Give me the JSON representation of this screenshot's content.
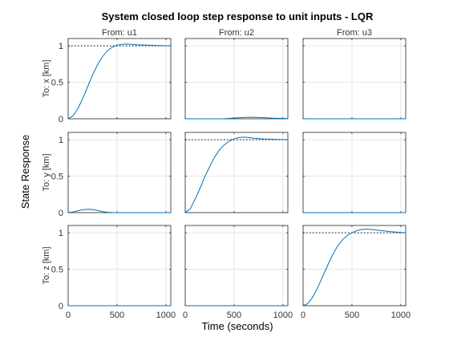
{
  "chart_data": {
    "type": "line",
    "title": "System closed loop step response to unit inputs - LQR",
    "xlabel": "Time (seconds)",
    "ylabel": "State Response",
    "xlim": [
      0,
      1050
    ],
    "ylim": [
      0,
      1.1
    ],
    "x_ticks": [
      0,
      500,
      1000
    ],
    "y_ticks": [
      0,
      0.5,
      1
    ],
    "x_tick_labels": [
      "0",
      "500",
      "1000"
    ],
    "y_tick_labels": [
      "0",
      "0.5",
      "1"
    ],
    "grid": true,
    "column_labels": [
      "From: u1",
      "From: u2",
      "From: u3"
    ],
    "row_labels": [
      "To: x [km]",
      "To: y [km]",
      "To: z [km]"
    ],
    "reference_value": 1,
    "colors": {
      "response": "#0072bd",
      "reference": "#000000",
      "grid": "#e6e6e6",
      "axes": "#262626"
    },
    "panels": [
      {
        "row": 0,
        "col": 0,
        "reference": true,
        "series": {
          "x": [
            0,
            50,
            100,
            150,
            200,
            250,
            300,
            350,
            400,
            450,
            500,
            550,
            600,
            650,
            700,
            800,
            900,
            1050
          ],
          "y": [
            0,
            0.04,
            0.14,
            0.28,
            0.44,
            0.6,
            0.74,
            0.85,
            0.93,
            0.98,
            1.01,
            1.02,
            1.025,
            1.02,
            1.015,
            1.01,
            1.005,
            1.0
          ]
        }
      },
      {
        "row": 0,
        "col": 1,
        "reference": false,
        "series": {
          "x": [
            0,
            200,
            400,
            500,
            600,
            700,
            800,
            900,
            1050
          ],
          "y": [
            0,
            0,
            0.002,
            0.01,
            0.018,
            0.02,
            0.015,
            0.008,
            0.003
          ]
        }
      },
      {
        "row": 0,
        "col": 2,
        "reference": false,
        "series": {
          "x": [
            0,
            1050
          ],
          "y": [
            0,
            0
          ]
        }
      },
      {
        "row": 1,
        "col": 0,
        "reference": false,
        "series": {
          "x": [
            0,
            50,
            100,
            150,
            200,
            250,
            300,
            350,
            400,
            450,
            500,
            600,
            800,
            1050
          ],
          "y": [
            0,
            0.01,
            0.025,
            0.04,
            0.045,
            0.042,
            0.03,
            0.015,
            0.005,
            0.001,
            0,
            0,
            0,
            0
          ]
        }
      },
      {
        "row": 1,
        "col": 1,
        "reference": true,
        "series": {
          "x": [
            0,
            50,
            100,
            150,
            200,
            250,
            300,
            350,
            400,
            450,
            500,
            550,
            600,
            650,
            700,
            800,
            900,
            1050
          ],
          "y": [
            0,
            0.05,
            0.18,
            0.33,
            0.49,
            0.63,
            0.76,
            0.86,
            0.93,
            0.98,
            1.01,
            1.03,
            1.035,
            1.03,
            1.02,
            1.01,
            1.005,
            1.0
          ]
        }
      },
      {
        "row": 1,
        "col": 2,
        "reference": false,
        "series": {
          "x": [
            0,
            1050
          ],
          "y": [
            0,
            0
          ]
        }
      },
      {
        "row": 2,
        "col": 0,
        "reference": false,
        "series": {
          "x": [
            0,
            1050
          ],
          "y": [
            0,
            0
          ]
        }
      },
      {
        "row": 2,
        "col": 1,
        "reference": false,
        "series": {
          "x": [
            0,
            1050
          ],
          "y": [
            0,
            0
          ]
        }
      },
      {
        "row": 2,
        "col": 2,
        "reference": true,
        "series": {
          "x": [
            0,
            50,
            100,
            150,
            200,
            250,
            300,
            350,
            400,
            450,
            500,
            550,
            600,
            650,
            700,
            800,
            900,
            1050
          ],
          "y": [
            0,
            0.03,
            0.12,
            0.25,
            0.4,
            0.55,
            0.69,
            0.81,
            0.9,
            0.96,
            1.0,
            1.03,
            1.045,
            1.05,
            1.045,
            1.03,
            1.015,
            1.0
          ]
        }
      }
    ]
  }
}
